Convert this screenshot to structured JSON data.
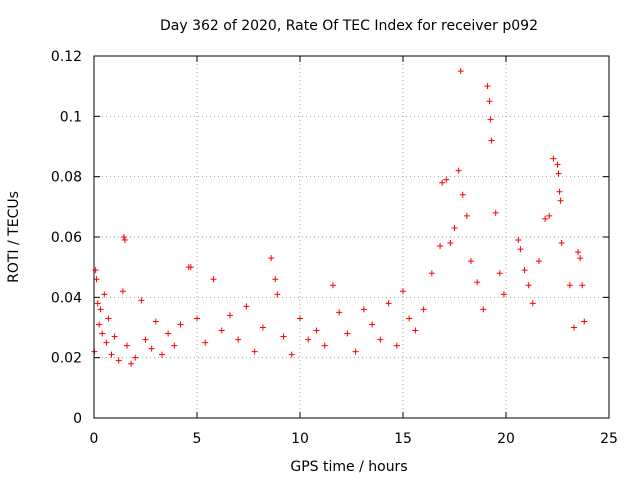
{
  "chart_data": {
    "type": "scatter",
    "title": "Day 362 of 2020, Rate Of TEC Index for receiver p092",
    "xlabel": "GPS time / hours",
    "ylabel": "ROTI / TECUs",
    "xlim": [
      0,
      25
    ],
    "ylim": [
      0,
      0.12
    ],
    "x_ticks": [
      0,
      5,
      10,
      15,
      20,
      25
    ],
    "y_ticks": [
      0,
      0.02,
      0.04,
      0.06,
      0.08,
      0.1,
      0.12
    ],
    "x_tick_labels": [
      "0",
      "5",
      "10",
      "15",
      "20",
      "25"
    ],
    "y_tick_labels": [
      "0",
      "0.02",
      "0.04",
      "0.06",
      "0.08",
      "0.1",
      "0.12"
    ],
    "grid": true,
    "marker": "+",
    "color": "#ff0000",
    "series": [
      {
        "name": "ROTI",
        "x": [
          0.02,
          0.08,
          0.12,
          0.18,
          0.25,
          0.32,
          0.4,
          0.5,
          0.6,
          0.7,
          0.85,
          1.0,
          1.2,
          1.4,
          1.45,
          1.5,
          1.6,
          1.8,
          2.0,
          2.3,
          2.5,
          2.8,
          3.0,
          3.3,
          3.6,
          3.9,
          4.2,
          4.6,
          4.7,
          5.0,
          5.4,
          5.8,
          6.2,
          6.6,
          7.0,
          7.4,
          7.8,
          8.2,
          8.6,
          8.8,
          8.9,
          9.2,
          9.6,
          10.0,
          10.4,
          10.8,
          11.2,
          11.6,
          11.9,
          12.3,
          12.7,
          13.1,
          13.5,
          13.9,
          14.3,
          14.7,
          15.0,
          15.3,
          15.6,
          16.0,
          16.4,
          16.8,
          16.9,
          17.1,
          17.3,
          17.5,
          17.7,
          17.8,
          17.9,
          18.1,
          18.3,
          18.6,
          18.9,
          19.1,
          19.2,
          19.25,
          19.3,
          19.5,
          19.7,
          19.9,
          20.6,
          20.7,
          20.9,
          21.1,
          21.3,
          21.6,
          21.9,
          22.1,
          22.3,
          22.5,
          22.55,
          22.6,
          22.65,
          22.7,
          23.1,
          23.3,
          23.5,
          23.6,
          23.7,
          23.8
        ],
        "y": [
          0.022,
          0.049,
          0.046,
          0.038,
          0.031,
          0.036,
          0.028,
          0.041,
          0.025,
          0.033,
          0.021,
          0.027,
          0.019,
          0.042,
          0.06,
          0.059,
          0.024,
          0.018,
          0.02,
          0.039,
          0.026,
          0.023,
          0.032,
          0.021,
          0.028,
          0.024,
          0.031,
          0.05,
          0.05,
          0.033,
          0.025,
          0.046,
          0.029,
          0.034,
          0.026,
          0.037,
          0.022,
          0.03,
          0.053,
          0.046,
          0.041,
          0.027,
          0.021,
          0.033,
          0.026,
          0.029,
          0.024,
          0.044,
          0.035,
          0.028,
          0.022,
          0.036,
          0.031,
          0.026,
          0.038,
          0.024,
          0.042,
          0.033,
          0.029,
          0.036,
          0.048,
          0.057,
          0.078,
          0.079,
          0.058,
          0.063,
          0.082,
          0.115,
          0.074,
          0.067,
          0.052,
          0.045,
          0.036,
          0.11,
          0.105,
          0.099,
          0.092,
          0.068,
          0.048,
          0.041,
          0.059,
          0.056,
          0.049,
          0.044,
          0.038,
          0.052,
          0.066,
          0.067,
          0.086,
          0.084,
          0.081,
          0.075,
          0.072,
          0.058,
          0.044,
          0.03,
          0.055,
          0.053,
          0.044,
          0.032
        ]
      }
    ]
  }
}
